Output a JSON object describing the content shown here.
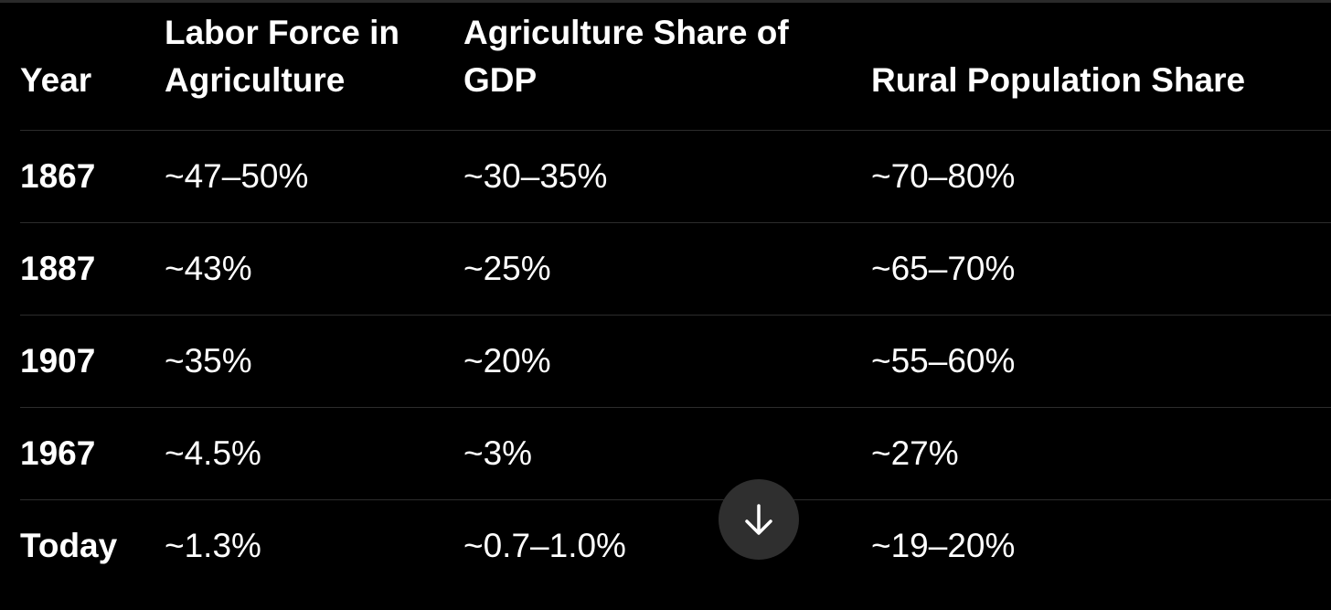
{
  "table": {
    "headers": [
      [
        "Year"
      ],
      [
        "Labor Force in",
        "Agriculture"
      ],
      [
        "Agriculture Share of",
        "GDP"
      ],
      [
        "Rural Population Share"
      ]
    ],
    "rows": [
      [
        "1867",
        "~47–50%",
        "~30–35%",
        "~70–80%"
      ],
      [
        "1887",
        "~43%",
        "~25%",
        "~65–70%"
      ],
      [
        "1907",
        "~35%",
        "~20%",
        "~55–60%"
      ],
      [
        "1967",
        "~4.5%",
        "~3%",
        "~27%"
      ],
      [
        "Today",
        "~1.3%",
        "~0.7–1.0%",
        "~19–20%"
      ]
    ]
  },
  "scroll_button": {
    "icon": "arrow-down-icon",
    "background": "#2f2f2f"
  },
  "colors": {
    "background": "#000000",
    "text": "#ffffff",
    "divider": "#2c2c2c"
  }
}
